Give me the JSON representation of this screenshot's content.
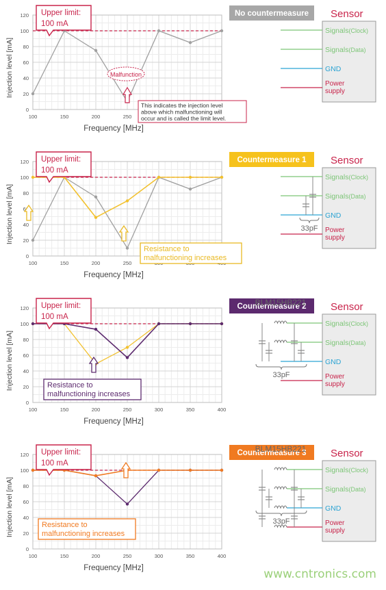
{
  "panels": [
    {
      "badge": "No countermeasure",
      "badge_color": "#a7a7a7",
      "upper_limit": [
        "Upper limit:",
        "100 mA"
      ],
      "circuit": "none",
      "inductor_label": "",
      "cap_label": "",
      "malfunction_label": "Malfunction",
      "note": [
        "This indicates the injection level",
        "above which malfunctioning will",
        "occur and is called the limit level."
      ],
      "note_color": "#c8234a",
      "chart_data": {
        "type": "line",
        "xlabel": "Frequency  [MHz]",
        "ylabel": "Injection level [mA]",
        "x": [
          100,
          150,
          200,
          250,
          300,
          350,
          400
        ],
        "ylim": [
          0,
          120
        ],
        "yticks": [
          0,
          20,
          40,
          60,
          80,
          100,
          120
        ],
        "limit_level": 100,
        "series": [
          {
            "color": "#a0a0a0",
            "values": [
              20,
              100,
              75,
              10,
              100,
              85,
              100
            ]
          }
        ]
      }
    },
    {
      "badge": "Countermeasure 1",
      "badge_color": "#f6c21c",
      "upper_limit": [
        "Upper limit:",
        "100 mA"
      ],
      "circuit": "caps",
      "inductor_label": "",
      "cap_label": "33pF",
      "note": [
        "Resistance to",
        "malfunctioning increases"
      ],
      "note_color": "#e9b923",
      "chart_data": {
        "type": "line",
        "xlabel": "Frequency  [MHz]",
        "ylabel": "Injection level [mA]",
        "x": [
          100,
          150,
          200,
          250,
          300,
          350,
          400
        ],
        "ylim": [
          0,
          120
        ],
        "yticks": [
          0,
          20,
          40,
          60,
          80,
          100,
          120
        ],
        "limit_level": 100,
        "series": [
          {
            "color": "#a0a0a0",
            "values": [
              20,
              100,
              75,
              10,
              100,
              85,
              100
            ]
          },
          {
            "color": "#f2c12e",
            "values": [
              100,
              100,
              49,
              70,
              100,
              100,
              100
            ]
          }
        ]
      }
    },
    {
      "badge": "Countermeasure 2",
      "badge_color": "#5c2a6e",
      "upper_limit": [
        "Upper limit:",
        "100 mA"
      ],
      "circuit": "lc",
      "inductor_label": "BLM15HB221",
      "cap_label": "33pF",
      "note": [
        "Resistance to",
        "malfunctioning increases"
      ],
      "note_color": "#5c2a6e",
      "chart_data": {
        "type": "line",
        "xlabel": "Frequency  [MHz]",
        "ylabel": "Injection level [mA]",
        "x": [
          100,
          150,
          200,
          250,
          300,
          350,
          400
        ],
        "ylim": [
          0,
          120
        ],
        "yticks": [
          0,
          20,
          40,
          60,
          80,
          100,
          120
        ],
        "limit_level": 100,
        "series": [
          {
            "color": "#f2c12e",
            "values": [
              100,
              100,
              49,
              70,
              100,
              100,
              100
            ]
          },
          {
            "color": "#5c2a6e",
            "values": [
              100,
              100,
              93,
              57,
              100,
              100,
              100
            ]
          }
        ]
      }
    },
    {
      "badge": "Countermeasure 3",
      "badge_color": "#f07a21",
      "upper_limit": [
        "Upper limit:",
        "100 mA"
      ],
      "circuit": "lc_all",
      "inductor_label": "BLM15HB221",
      "cap_label": "33pF",
      "note": [
        "Resistance to",
        "malfunctioning increases"
      ],
      "note_color": "#f07a21",
      "chart_data": {
        "type": "line",
        "xlabel": "Frequency  [MHz]",
        "ylabel": "Injection level [mA]",
        "x": [
          100,
          150,
          200,
          250,
          300,
          350,
          400
        ],
        "ylim": [
          0,
          120
        ],
        "yticks": [
          0,
          20,
          40,
          60,
          80,
          100,
          120
        ],
        "limit_level": 100,
        "series": [
          {
            "color": "#5c2a6e",
            "values": [
              100,
              100,
              93,
              57,
              100,
              100,
              100
            ]
          },
          {
            "color": "#f07a21",
            "values": [
              100,
              100,
              93,
              100,
              100,
              100,
              100
            ]
          }
        ]
      }
    }
  ],
  "sensor": {
    "title": "Sensor",
    "signals": [
      {
        "label": "Signals",
        "sub": "(Clock)",
        "color": "#7cc576"
      },
      {
        "label": "Signals",
        "sub": "(Data)",
        "color": "#7cc576"
      },
      {
        "label": "GND",
        "sub": "",
        "color": "#2aa3d3"
      },
      {
        "label": "Power",
        "sub": "supply",
        "color": "#c8234a"
      }
    ]
  },
  "watermark": "www.cntronics.com"
}
